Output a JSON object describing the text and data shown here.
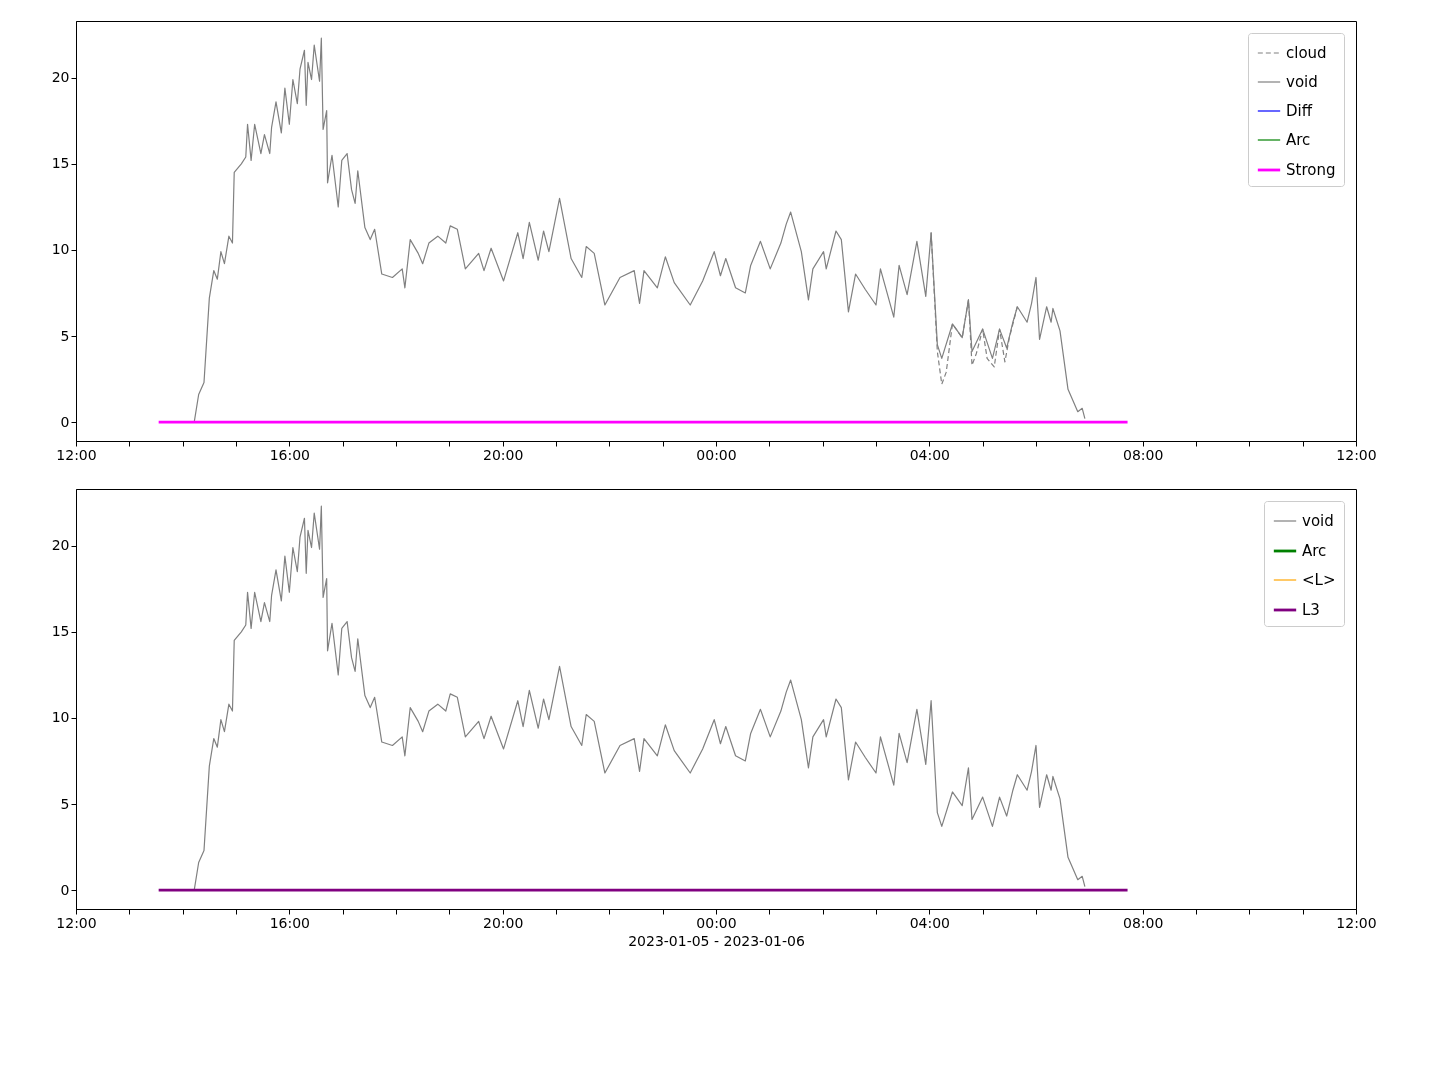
{
  "chart_data": [
    {
      "type": "line",
      "legend": "top right",
      "grid": false,
      "ylim": [
        -1.1,
        23.3
      ],
      "yticks": [
        0,
        5,
        10,
        15,
        20
      ],
      "xlim": [
        "2023-01-05T12:00",
        "2023-01-06T12:00"
      ],
      "xticks": [
        {
          "value": "2023-01-05T12:00",
          "label": "12:00"
        },
        {
          "value": "2023-01-05T13:00",
          "label": null
        },
        {
          "value": "2023-01-05T14:00",
          "label": null
        },
        {
          "value": "2023-01-05T15:00",
          "label": null
        },
        {
          "value": "2023-01-05T16:00",
          "label": "16:00"
        },
        {
          "value": "2023-01-05T17:00",
          "label": null
        },
        {
          "value": "2023-01-05T18:00",
          "label": null
        },
        {
          "value": "2023-01-05T19:00",
          "label": null
        },
        {
          "value": "2023-01-05T20:00",
          "label": "20:00"
        },
        {
          "value": "2023-01-05T21:00",
          "label": null
        },
        {
          "value": "2023-01-05T22:00",
          "label": null
        },
        {
          "value": "2023-01-05T23:00",
          "label": null
        },
        {
          "value": "2023-01-06T00:00",
          "label": "00:00"
        },
        {
          "value": "2023-01-06T01:00",
          "label": null
        },
        {
          "value": "2023-01-06T02:00",
          "label": null
        },
        {
          "value": "2023-01-06T03:00",
          "label": null
        },
        {
          "value": "2023-01-06T04:00",
          "label": "04:00"
        },
        {
          "value": "2023-01-06T05:00",
          "label": null
        },
        {
          "value": "2023-01-06T06:00",
          "label": null
        },
        {
          "value": "2023-01-06T07:00",
          "label": null
        },
        {
          "value": "2023-01-06T08:00",
          "label": "08:00"
        },
        {
          "value": "2023-01-06T09:00",
          "label": null
        },
        {
          "value": "2023-01-06T10:00",
          "label": null
        },
        {
          "value": "2023-01-06T11:00",
          "label": null
        },
        {
          "value": "2023-01-06T12:00",
          "label": "12:00"
        }
      ],
      "series": [
        {
          "name": "cloud",
          "color": "#808080",
          "line_style": "dashed",
          "x": [
            "2023-01-06T04:02",
            "2023-01-06T04:09",
            "2023-01-06T04:14",
            "2023-01-06T04:19",
            "2023-01-06T04:26",
            "2023-01-06T04:37",
            "2023-01-06T04:44",
            "2023-01-06T04:48",
            "2023-01-06T04:53",
            "2023-01-06T05:00",
            "2023-01-06T05:05",
            "2023-01-06T05:13",
            "2023-01-06T05:19",
            "2023-01-06T05:25",
            "2023-01-06T05:30",
            "2023-01-06T05:39"
          ],
          "values": [
            11.0,
            4.1,
            2.2,
            2.9,
            5.7,
            4.9,
            7.1,
            3.3,
            4.0,
            5.4,
            3.7,
            3.2,
            5.4,
            3.5,
            4.9,
            6.7
          ]
        },
        {
          "name": "void",
          "color": "#808080",
          "x": [
            "2023-01-05T14:13",
            "2023-01-05T14:18",
            "2023-01-05T14:24",
            "2023-01-05T14:30",
            "2023-01-05T14:35",
            "2023-01-05T14:39",
            "2023-01-05T14:43",
            "2023-01-05T14:47",
            "2023-01-05T14:52",
            "2023-01-05T14:56",
            "2023-01-05T14:58",
            "2023-01-05T15:06",
            "2023-01-05T15:11",
            "2023-01-05T15:13",
            "2023-01-05T15:17",
            "2023-01-05T15:21",
            "2023-01-05T15:28",
            "2023-01-05T15:32",
            "2023-01-05T15:38",
            "2023-01-05T15:40",
            "2023-01-05T15:45",
            "2023-01-05T15:51",
            "2023-01-05T15:55",
            "2023-01-05T16:00",
            "2023-01-05T16:04",
            "2023-01-05T16:09",
            "2023-01-05T16:12",
            "2023-01-05T16:17",
            "2023-01-05T16:19",
            "2023-01-05T16:21",
            "2023-01-05T16:25",
            "2023-01-05T16:28",
            "2023-01-05T16:34",
            "2023-01-05T16:36",
            "2023-01-05T16:38",
            "2023-01-05T16:42",
            "2023-01-05T16:43",
            "2023-01-05T16:48",
            "2023-01-05T16:55",
            "2023-01-05T16:59",
            "2023-01-05T17:05",
            "2023-01-05T17:10",
            "2023-01-05T17:14",
            "2023-01-05T17:17",
            "2023-01-05T17:25",
            "2023-01-05T17:31",
            "2023-01-05T17:36",
            "2023-01-05T17:44",
            "2023-01-05T17:56",
            "2023-01-05T18:07",
            "2023-01-05T18:10",
            "2023-01-05T18:16",
            "2023-01-05T18:25",
            "2023-01-05T18:30",
            "2023-01-05T18:37",
            "2023-01-05T18:47",
            "2023-01-05T18:56",
            "2023-01-05T19:01",
            "2023-01-05T19:09",
            "2023-01-05T19:18",
            "2023-01-05T19:33",
            "2023-01-05T19:39",
            "2023-01-05T19:47",
            "2023-01-05T20:01",
            "2023-01-05T20:17",
            "2023-01-05T20:23",
            "2023-01-05T20:30",
            "2023-01-05T20:40",
            "2023-01-05T20:46",
            "2023-01-05T20:52",
            "2023-01-05T21:04",
            "2023-01-05T21:17",
            "2023-01-05T21:29",
            "2023-01-05T21:34",
            "2023-01-05T21:43",
            "2023-01-05T21:55",
            "2023-01-05T22:12",
            "2023-01-05T22:28",
            "2023-01-05T22:34",
            "2023-01-05T22:39",
            "2023-01-05T22:54",
            "2023-01-05T23:03",
            "2023-01-05T23:13",
            "2023-01-05T23:31",
            "2023-01-05T23:45",
            "2023-01-05T23:58",
            "2023-01-06T00:05",
            "2023-01-06T00:11",
            "2023-01-06T00:22",
            "2023-01-06T00:33",
            "2023-01-06T00:39",
            "2023-01-06T00:50",
            "2023-01-06T01:01",
            "2023-01-06T01:13",
            "2023-01-06T01:19",
            "2023-01-06T01:24",
            "2023-01-06T01:36",
            "2023-01-06T01:44",
            "2023-01-06T01:49",
            "2023-01-06T02:01",
            "2023-01-06T02:04",
            "2023-01-06T02:15",
            "2023-01-06T02:21",
            "2023-01-06T02:29",
            "2023-01-06T02:37",
            "2023-01-06T02:48",
            "2023-01-06T03:00",
            "2023-01-06T03:05",
            "2023-01-06T03:20",
            "2023-01-06T03:26",
            "2023-01-06T03:35",
            "2023-01-06T03:46",
            "2023-01-06T03:56",
            "2023-01-06T04:02",
            "2023-01-06T04:09",
            "2023-01-06T04:14",
            "2023-01-06T04:26",
            "2023-01-06T04:37",
            "2023-01-06T04:44",
            "2023-01-06T04:48",
            "2023-01-06T05:00",
            "2023-01-06T05:11",
            "2023-01-06T05:19",
            "2023-01-06T05:27",
            "2023-01-06T05:34",
            "2023-01-06T05:39",
            "2023-01-06T05:50",
            "2023-01-06T05:55",
            "2023-01-06T06:00",
            "2023-01-06T06:04",
            "2023-01-06T06:12",
            "2023-01-06T06:17",
            "2023-01-06T06:19",
            "2023-01-06T06:27",
            "2023-01-06T06:36",
            "2023-01-06T06:42",
            "2023-01-06T06:47",
            "2023-01-06T06:52",
            "2023-01-06T06:55"
          ],
          "values": [
            0,
            1.6,
            2.3,
            7.2,
            8.8,
            8.3,
            9.9,
            9.2,
            10.8,
            10.4,
            14.5,
            15.0,
            15.4,
            17.3,
            15.2,
            17.3,
            15.6,
            16.7,
            15.6,
            17.1,
            18.6,
            16.8,
            19.4,
            17.3,
            19.9,
            18.5,
            20.5,
            21.6,
            18.4,
            20.9,
            19.9,
            21.9,
            19.8,
            22.3,
            17.0,
            18.1,
            13.9,
            15.5,
            12.5,
            15.2,
            15.6,
            13.5,
            12.7,
            14.6,
            11.3,
            10.6,
            11.2,
            8.6,
            8.4,
            8.9,
            7.8,
            10.6,
            9.8,
            9.2,
            10.4,
            10.8,
            10.4,
            11.4,
            11.2,
            8.9,
            9.8,
            8.8,
            10.1,
            8.2,
            11.0,
            9.5,
            11.6,
            9.4,
            11.1,
            9.9,
            13.0,
            9.5,
            8.4,
            10.2,
            9.8,
            6.8,
            8.4,
            8.8,
            6.9,
            8.8,
            7.8,
            9.6,
            8.1,
            6.8,
            8.2,
            9.9,
            8.5,
            9.5,
            7.8,
            7.5,
            9.1,
            10.5,
            8.9,
            10.4,
            11.5,
            12.2,
            9.9,
            7.1,
            8.9,
            9.9,
            8.9,
            11.1,
            10.6,
            6.4,
            8.6,
            7.7,
            6.8,
            8.9,
            6.1,
            9.1,
            7.4,
            10.5,
            7.3,
            11.0,
            4.5,
            3.7,
            5.7,
            4.9,
            7.1,
            4.1,
            5.4,
            3.7,
            5.4,
            4.3,
            5.8,
            6.7,
            5.8,
            6.9,
            8.4,
            4.8,
            6.7,
            5.8,
            6.6,
            5.3,
            1.9,
            1.2,
            0.6,
            0.8,
            0.2
          ]
        },
        {
          "name": "Diff",
          "color": "#0000ff"
        },
        {
          "name": "Arc",
          "color": "#008000"
        },
        {
          "name": "Strong",
          "color": "#ff00ff",
          "x": [
            "2023-01-05T13:33",
            "2023-01-06T07:43"
          ],
          "values": [
            0,
            0
          ]
        }
      ]
    },
    {
      "type": "line",
      "legend": "top right",
      "grid": false,
      "xlabel": "2023-01-05 - 2023-01-06",
      "ylim": [
        -1.1,
        23.3
      ],
      "yticks": [
        0,
        5,
        10,
        15,
        20
      ],
      "xlim": [
        "2023-01-05T12:00",
        "2023-01-06T12:00"
      ],
      "xticks": [
        {
          "value": "2023-01-05T12:00",
          "label": "12:00"
        },
        {
          "value": "2023-01-05T13:00",
          "label": null
        },
        {
          "value": "2023-01-05T14:00",
          "label": null
        },
        {
          "value": "2023-01-05T15:00",
          "label": null
        },
        {
          "value": "2023-01-05T16:00",
          "label": "16:00"
        },
        {
          "value": "2023-01-05T17:00",
          "label": null
        },
        {
          "value": "2023-01-05T18:00",
          "label": null
        },
        {
          "value": "2023-01-05T19:00",
          "label": null
        },
        {
          "value": "2023-01-05T20:00",
          "label": "20:00"
        },
        {
          "value": "2023-01-05T21:00",
          "label": null
        },
        {
          "value": "2023-01-05T22:00",
          "label": null
        },
        {
          "value": "2023-01-05T23:00",
          "label": null
        },
        {
          "value": "2023-01-06T00:00",
          "label": "00:00"
        },
        {
          "value": "2023-01-06T01:00",
          "label": null
        },
        {
          "value": "2023-01-06T02:00",
          "label": null
        },
        {
          "value": "2023-01-06T03:00",
          "label": null
        },
        {
          "value": "2023-01-06T04:00",
          "label": "04:00"
        },
        {
          "value": "2023-01-06T05:00",
          "label": null
        },
        {
          "value": "2023-01-06T06:00",
          "label": null
        },
        {
          "value": "2023-01-06T07:00",
          "label": null
        },
        {
          "value": "2023-01-06T08:00",
          "label": "08:00"
        },
        {
          "value": "2023-01-06T09:00",
          "label": null
        },
        {
          "value": "2023-01-06T10:00",
          "label": null
        },
        {
          "value": "2023-01-06T11:00",
          "label": null
        },
        {
          "value": "2023-01-06T12:00",
          "label": "12:00"
        }
      ],
      "series": [
        {
          "name": "void",
          "color": "#808080",
          "x": [
            "2023-01-05T14:13",
            "2023-01-05T14:18",
            "2023-01-05T14:24",
            "2023-01-05T14:30",
            "2023-01-05T14:35",
            "2023-01-05T14:39",
            "2023-01-05T14:43",
            "2023-01-05T14:47",
            "2023-01-05T14:52",
            "2023-01-05T14:56",
            "2023-01-05T14:58",
            "2023-01-05T15:06",
            "2023-01-05T15:11",
            "2023-01-05T15:13",
            "2023-01-05T15:17",
            "2023-01-05T15:21",
            "2023-01-05T15:28",
            "2023-01-05T15:32",
            "2023-01-05T15:38",
            "2023-01-05T15:40",
            "2023-01-05T15:45",
            "2023-01-05T15:51",
            "2023-01-05T15:55",
            "2023-01-05T16:00",
            "2023-01-05T16:04",
            "2023-01-05T16:09",
            "2023-01-05T16:12",
            "2023-01-05T16:17",
            "2023-01-05T16:19",
            "2023-01-05T16:21",
            "2023-01-05T16:25",
            "2023-01-05T16:28",
            "2023-01-05T16:34",
            "2023-01-05T16:36",
            "2023-01-05T16:38",
            "2023-01-05T16:42",
            "2023-01-05T16:43",
            "2023-01-05T16:48",
            "2023-01-05T16:55",
            "2023-01-05T16:59",
            "2023-01-05T17:05",
            "2023-01-05T17:10",
            "2023-01-05T17:14",
            "2023-01-05T17:17",
            "2023-01-05T17:25",
            "2023-01-05T17:31",
            "2023-01-05T17:36",
            "2023-01-05T17:44",
            "2023-01-05T17:56",
            "2023-01-05T18:07",
            "2023-01-05T18:10",
            "2023-01-05T18:16",
            "2023-01-05T18:25",
            "2023-01-05T18:30",
            "2023-01-05T18:37",
            "2023-01-05T18:47",
            "2023-01-05T18:56",
            "2023-01-05T19:01",
            "2023-01-05T19:09",
            "2023-01-05T19:18",
            "2023-01-05T19:33",
            "2023-01-05T19:39",
            "2023-01-05T19:47",
            "2023-01-05T20:01",
            "2023-01-05T20:17",
            "2023-01-05T20:23",
            "2023-01-05T20:30",
            "2023-01-05T20:40",
            "2023-01-05T20:46",
            "2023-01-05T20:52",
            "2023-01-05T21:04",
            "2023-01-05T21:17",
            "2023-01-05T21:29",
            "2023-01-05T21:34",
            "2023-01-05T21:43",
            "2023-01-05T21:55",
            "2023-01-05T22:12",
            "2023-01-05T22:28",
            "2023-01-05T22:34",
            "2023-01-05T22:39",
            "2023-01-05T22:54",
            "2023-01-05T23:03",
            "2023-01-05T23:13",
            "2023-01-05T23:31",
            "2023-01-05T23:45",
            "2023-01-05T23:58",
            "2023-01-06T00:05",
            "2023-01-06T00:11",
            "2023-01-06T00:22",
            "2023-01-06T00:33",
            "2023-01-06T00:39",
            "2023-01-06T00:50",
            "2023-01-06T01:01",
            "2023-01-06T01:13",
            "2023-01-06T01:19",
            "2023-01-06T01:24",
            "2023-01-06T01:36",
            "2023-01-06T01:44",
            "2023-01-06T01:49",
            "2023-01-06T02:01",
            "2023-01-06T02:04",
            "2023-01-06T02:15",
            "2023-01-06T02:21",
            "2023-01-06T02:29",
            "2023-01-06T02:37",
            "2023-01-06T02:48",
            "2023-01-06T03:00",
            "2023-01-06T03:05",
            "2023-01-06T03:20",
            "2023-01-06T03:26",
            "2023-01-06T03:35",
            "2023-01-06T03:46",
            "2023-01-06T03:56",
            "2023-01-06T04:02",
            "2023-01-06T04:09",
            "2023-01-06T04:14",
            "2023-01-06T04:26",
            "2023-01-06T04:37",
            "2023-01-06T04:44",
            "2023-01-06T04:48",
            "2023-01-06T05:00",
            "2023-01-06T05:11",
            "2023-01-06T05:19",
            "2023-01-06T05:27",
            "2023-01-06T05:34",
            "2023-01-06T05:39",
            "2023-01-06T05:50",
            "2023-01-06T05:55",
            "2023-01-06T06:00",
            "2023-01-06T06:04",
            "2023-01-06T06:12",
            "2023-01-06T06:17",
            "2023-01-06T06:19",
            "2023-01-06T06:27",
            "2023-01-06T06:36",
            "2023-01-06T06:42",
            "2023-01-06T06:47",
            "2023-01-06T06:52",
            "2023-01-06T06:55"
          ],
          "values": [
            0,
            1.6,
            2.3,
            7.2,
            8.8,
            8.3,
            9.9,
            9.2,
            10.8,
            10.4,
            14.5,
            15.0,
            15.4,
            17.3,
            15.2,
            17.3,
            15.6,
            16.7,
            15.6,
            17.1,
            18.6,
            16.8,
            19.4,
            17.3,
            19.9,
            18.5,
            20.5,
            21.6,
            18.4,
            20.9,
            19.9,
            21.9,
            19.8,
            22.3,
            17.0,
            18.1,
            13.9,
            15.5,
            12.5,
            15.2,
            15.6,
            13.5,
            12.7,
            14.6,
            11.3,
            10.6,
            11.2,
            8.6,
            8.4,
            8.9,
            7.8,
            10.6,
            9.8,
            9.2,
            10.4,
            10.8,
            10.4,
            11.4,
            11.2,
            8.9,
            9.8,
            8.8,
            10.1,
            8.2,
            11.0,
            9.5,
            11.6,
            9.4,
            11.1,
            9.9,
            13.0,
            9.5,
            8.4,
            10.2,
            9.8,
            6.8,
            8.4,
            8.8,
            6.9,
            8.8,
            7.8,
            9.6,
            8.1,
            6.8,
            8.2,
            9.9,
            8.5,
            9.5,
            7.8,
            7.5,
            9.1,
            10.5,
            8.9,
            10.4,
            11.5,
            12.2,
            9.9,
            7.1,
            8.9,
            9.9,
            8.9,
            11.1,
            10.6,
            6.4,
            8.6,
            7.7,
            6.8,
            8.9,
            6.1,
            9.1,
            7.4,
            10.5,
            7.3,
            11.0,
            4.5,
            3.7,
            5.7,
            4.9,
            7.1,
            4.1,
            5.4,
            3.7,
            5.4,
            4.3,
            5.8,
            6.7,
            5.8,
            6.9,
            8.4,
            4.8,
            6.7,
            5.8,
            6.6,
            5.3,
            1.9,
            1.2,
            0.6,
            0.8,
            0.2
          ]
        },
        {
          "name": "Arc",
          "color": "#008000"
        },
        {
          "name": "<L>",
          "color": "#ffa500"
        },
        {
          "name": "L3",
          "color": "#800080",
          "x": [
            "2023-01-05T13:33",
            "2023-01-06T07:43"
          ],
          "values": [
            0,
            0
          ]
        }
      ]
    }
  ]
}
